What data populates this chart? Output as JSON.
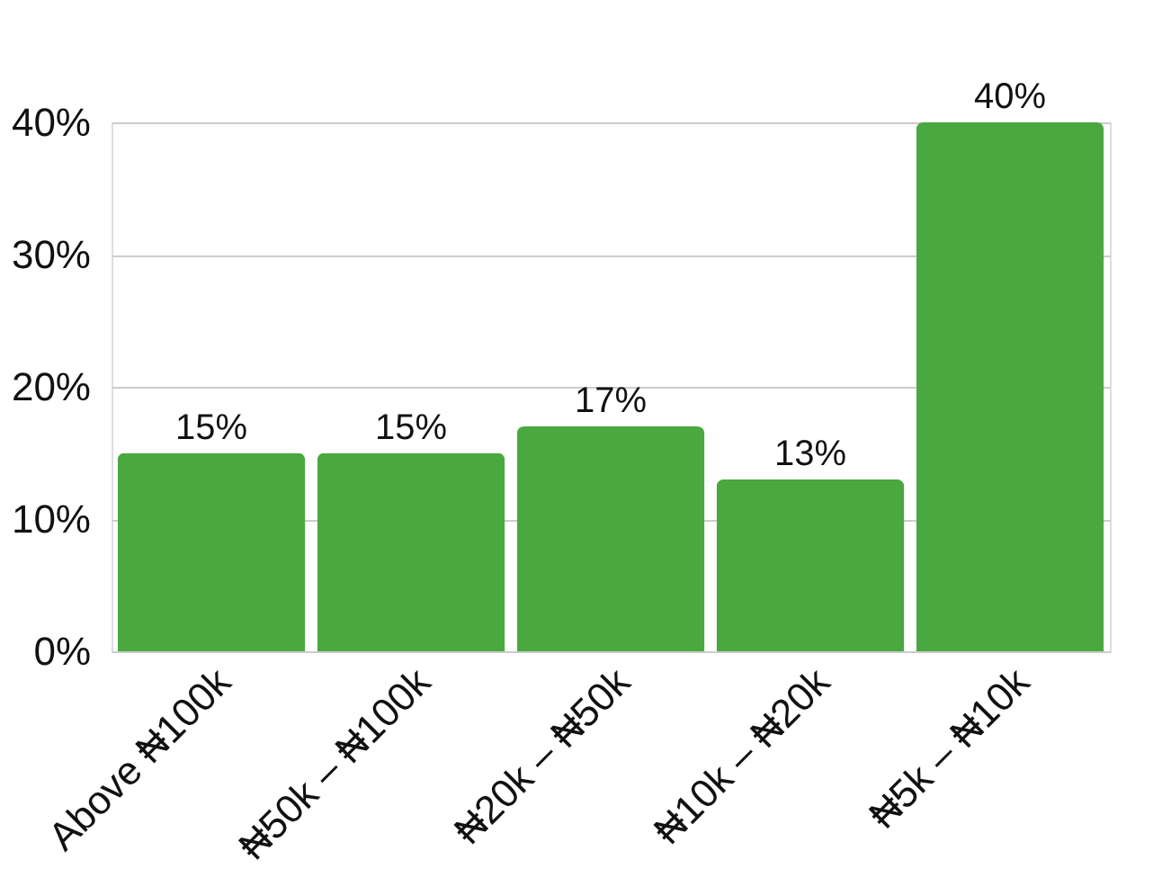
{
  "chart_data": {
    "type": "bar",
    "categories": [
      "Above ₦100k",
      "₦50k – ₦100k",
      "₦20k – ₦50k",
      "₦10k – ₦20k",
      "₦5k – ₦10k"
    ],
    "values": [
      15,
      15,
      17,
      13,
      40
    ],
    "value_labels": [
      "15%",
      "15%",
      "17%",
      "13%",
      "40%"
    ],
    "color": "#4aa840",
    "ylim": [
      0,
      40
    ],
    "yticks": [
      {
        "value": 0,
        "label": "0%"
      },
      {
        "value": 10,
        "label": "10%"
      },
      {
        "value": 20,
        "label": "20%"
      },
      {
        "value": 30,
        "label": "30%"
      },
      {
        "value": 40,
        "label": "40%"
      }
    ],
    "grid": "y"
  }
}
